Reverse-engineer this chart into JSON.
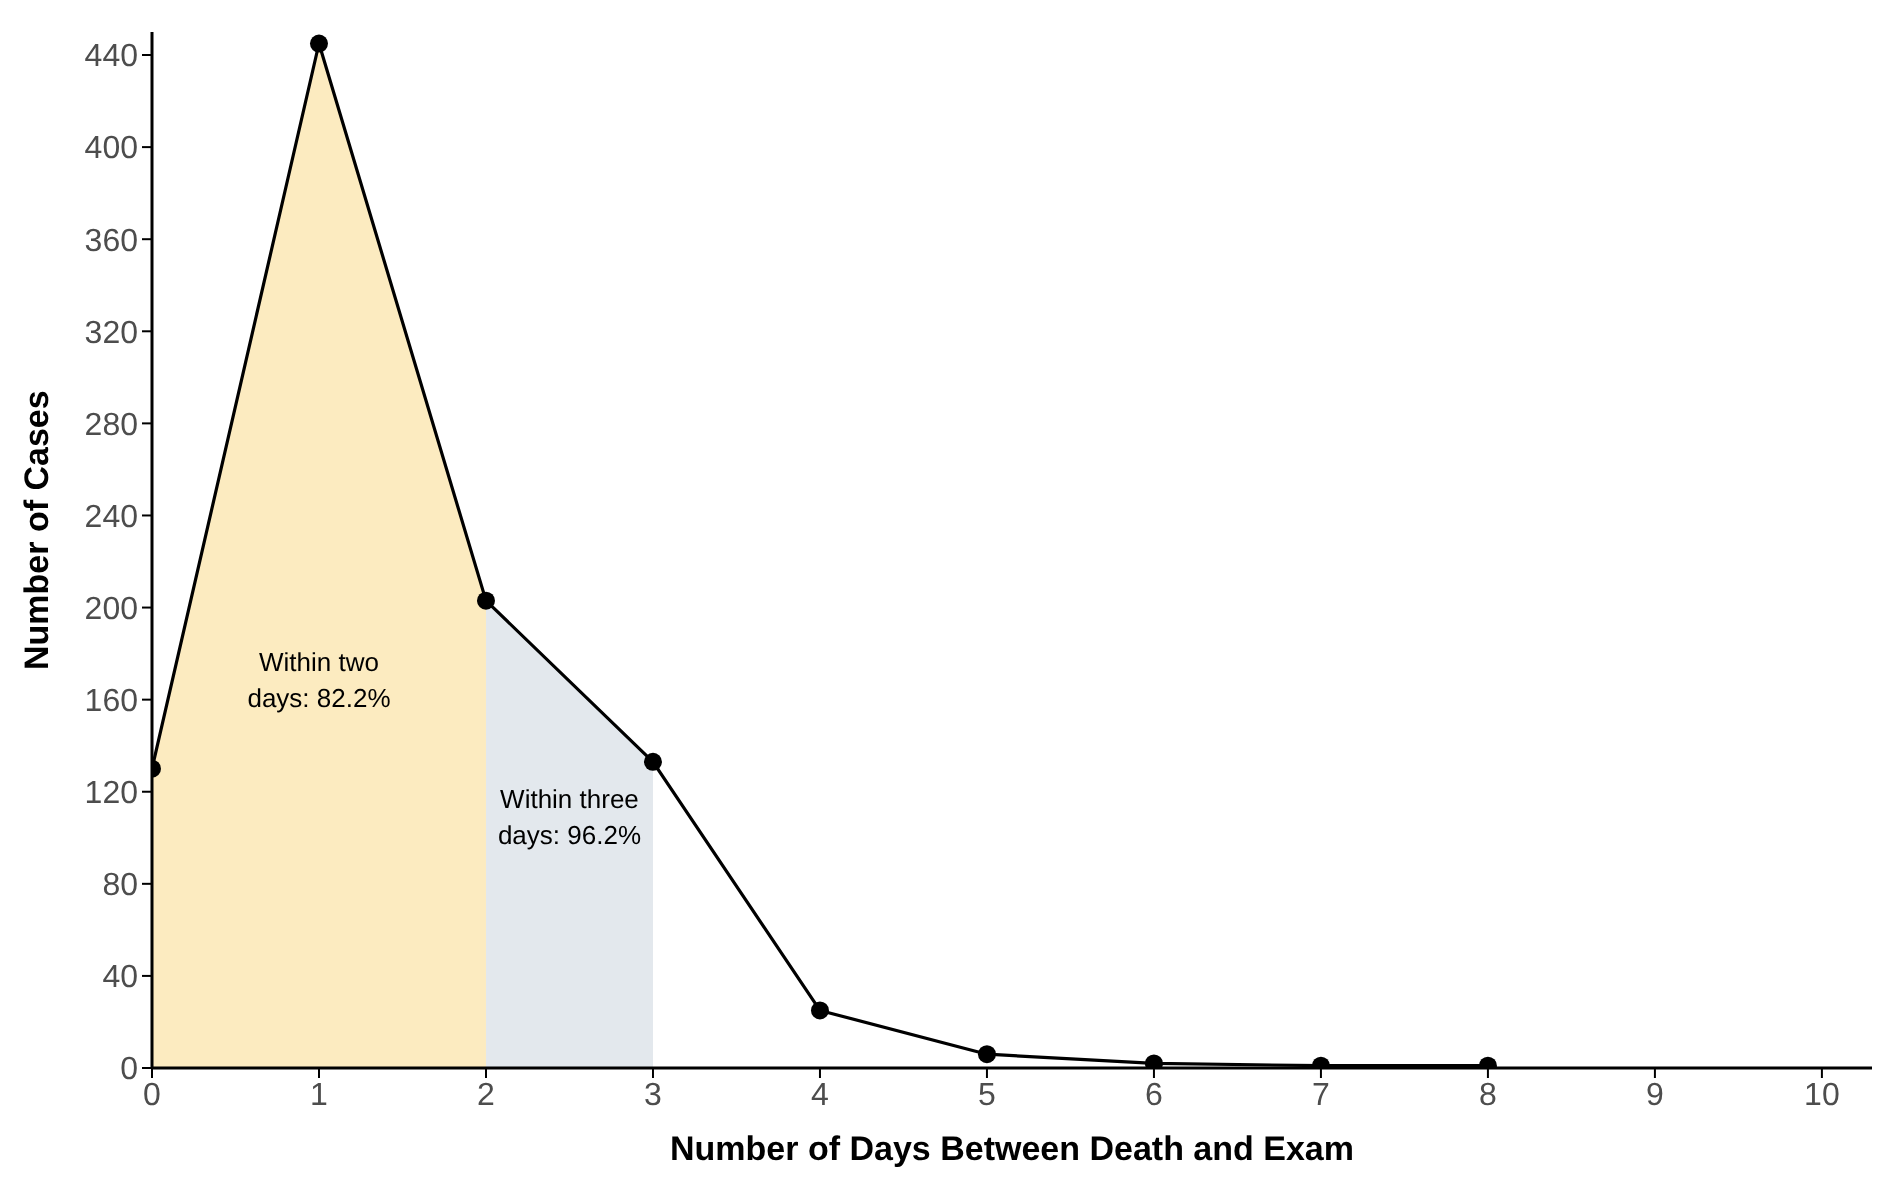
{
  "chart_data": {
    "type": "line",
    "xlabel": "Number of Days Between Death and Exam",
    "ylabel": "Number of Cases",
    "xlim": [
      0,
      10.3
    ],
    "xticks": [
      0,
      1,
      2,
      3,
      4,
      5,
      6,
      7,
      8,
      9,
      10
    ],
    "ylim": [
      0,
      450
    ],
    "yticks": [
      0,
      40,
      80,
      120,
      160,
      200,
      240,
      280,
      320,
      360,
      400,
      440
    ],
    "grid": false,
    "legend": false,
    "series": [
      {
        "type": "area",
        "color": "#fcebc0",
        "x": [
          0,
          1,
          2
        ],
        "values": [
          130,
          445,
          203
        ],
        "marker": "none"
      },
      {
        "type": "area",
        "color": "#e3e8ed",
        "x": [
          2,
          3
        ],
        "values": [
          203,
          133
        ],
        "marker": "none"
      },
      {
        "color": "#000000",
        "x": [
          0,
          1,
          2,
          3,
          4,
          5,
          6,
          7,
          8
        ],
        "values": [
          130,
          445,
          203,
          133,
          25,
          6,
          2,
          1,
          1
        ],
        "marker": "circle",
        "line_style": "solid"
      }
    ],
    "annotations": [
      "Within two days: 82.2%",
      "Within three days: 96.2%"
    ]
  }
}
